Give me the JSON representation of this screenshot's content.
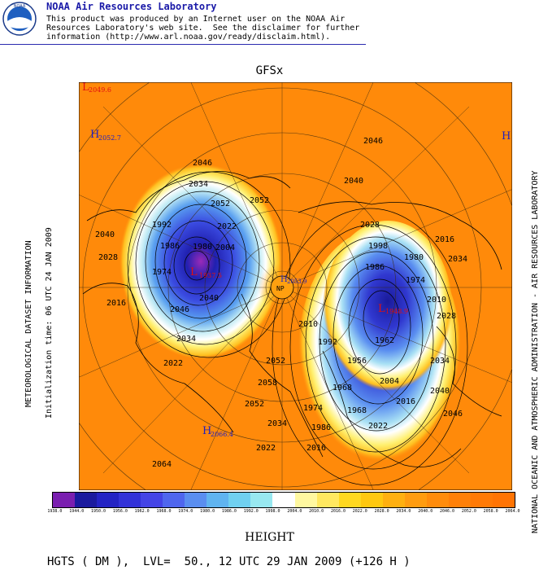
{
  "header": {
    "org": "NOAA Air Resources Laboratory",
    "logo_text": "NOAA",
    "disclaimer_lines": [
      "This product was produced by an Internet user on the NOAA Air",
      "Resources Laboratory's web site.  See the disclaimer for further",
      "information (http://www.arl.noaa.gov/ready/disclaim.html)."
    ]
  },
  "map": {
    "model": "GFSx",
    "pole_label": "NP",
    "pressure_centers": [
      {
        "type": "L",
        "value": "2049.6",
        "color": "#e01010"
      },
      {
        "type": "H",
        "value": "2052.7",
        "color": "#2020c0"
      },
      {
        "type": "H",
        "value": "",
        "color": "#2020c0"
      },
      {
        "type": "L",
        "value": "1937.5",
        "color": "#e01010"
      },
      {
        "type": "L",
        "value": "1948.9",
        "color": "#e01010"
      },
      {
        "type": "H",
        "value": "2066.4",
        "color": "#2020c0"
      },
      {
        "type": "H",
        "value": "2053.9",
        "color": "#2020c0"
      }
    ],
    "contour_labels": [
      "2046",
      "2034",
      "2052",
      "2040",
      "2028",
      "2022",
      "2004",
      "1992",
      "1986",
      "1980",
      "1974",
      "2040",
      "2016",
      "2046",
      "2052",
      "2040",
      "2028",
      "2016",
      "2034",
      "2010",
      "1998",
      "1986",
      "1980",
      "1974",
      "1962",
      "1956",
      "1968",
      "2004",
      "2016",
      "2022",
      "2034",
      "2040",
      "2046",
      "2052",
      "2058",
      "2028",
      "2046",
      "2034",
      "2022",
      "2016",
      "2010",
      "1992",
      "1968",
      "1974",
      "1986",
      "2022",
      "2034",
      "2052",
      "2064"
    ]
  },
  "side_labels": {
    "left1": "METEOROLOGICAL DATASET INFORMATION",
    "left2": "Initialization time: 06 UTC 24 JAN 2009",
    "right": "NATIONAL OCEANIC AND ATMOSPHERIC ADMINISTRATION - AIR RESOURCES LABORATORY"
  },
  "colorbar": {
    "colors": [
      "#7a1fb0",
      "#1a1a9e",
      "#2323c4",
      "#3232d8",
      "#4444e6",
      "#4f66ee",
      "#5a8ef0",
      "#60b4f0",
      "#70d0f0",
      "#98e8f0",
      "#ffffff",
      "#fff8a0",
      "#ffe860",
      "#ffd820",
      "#ffc810",
      "#ffb010",
      "#ff9c10",
      "#ff8c0c",
      "#ff8008",
      "#ff7a06",
      "#ff7404"
    ],
    "ticks": [
      "1938.0",
      "1944.0",
      "1950.0",
      "1956.0",
      "1962.0",
      "1968.0",
      "1974.0",
      "1980.0",
      "1986.0",
      "1992.0",
      "1998.0",
      "2004.0",
      "2010.0",
      "2016.0",
      "2022.0",
      "2028.0",
      "2034.0",
      "2040.0",
      "2046.0",
      "2052.0",
      "2058.0",
      "2064.0"
    ]
  },
  "variable_label": "HEIGHT",
  "footer": "HGTS ( DM ),  LVL=  50., 12 UTC 29 JAN 2009 (+126 H )"
}
